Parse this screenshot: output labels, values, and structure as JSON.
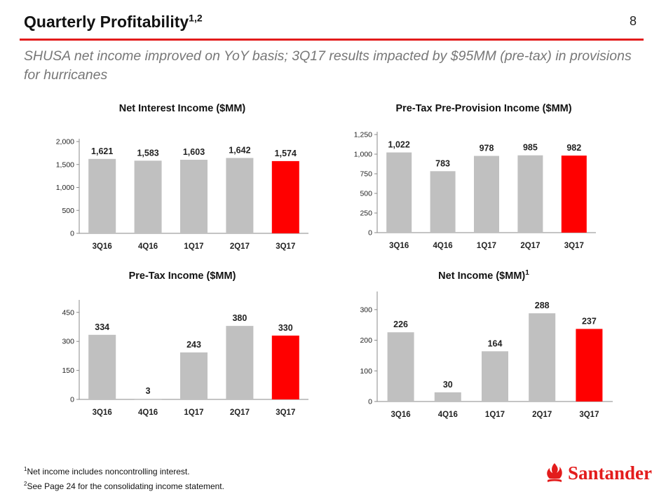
{
  "header": {
    "title": "Quarterly Profitability",
    "title_sup": "1,2",
    "page_number": "8",
    "subtitle": "SHUSA net income improved on YoY basis; 3Q17 results impacted by $95MM (pre-tax) in provisions for hurricanes"
  },
  "colors": {
    "bar_default": "#c0c0c0",
    "bar_highlight": "#ff0000",
    "brand": "#e31c1c"
  },
  "chart_data": [
    {
      "type": "bar",
      "title": "Net Interest Income ($MM)",
      "title_sup": "",
      "categories": [
        "3Q16",
        "4Q16",
        "1Q17",
        "2Q17",
        "3Q17"
      ],
      "values": [
        1621,
        1583,
        1603,
        1642,
        1574
      ],
      "value_labels": [
        "1,621",
        "1,583",
        "1,603",
        "1,642",
        "1,574"
      ],
      "yticks": [
        0,
        500,
        1000,
        1500,
        2000
      ],
      "ytick_labels": [
        "0",
        "500",
        "1,000",
        "1,500",
        "2,000"
      ],
      "ylim": [
        0,
        2000
      ],
      "highlight_index": 4
    },
    {
      "type": "bar",
      "title": "Pre-Tax Pre-Provision Income ($MM)",
      "title_sup": "",
      "categories": [
        "3Q16",
        "4Q16",
        "1Q17",
        "2Q17",
        "3Q17"
      ],
      "values": [
        1022,
        783,
        978,
        985,
        982
      ],
      "value_labels": [
        "1,022",
        "783",
        "978",
        "985",
        "982"
      ],
      "yticks": [
        0,
        250,
        500,
        750,
        1000,
        1250
      ],
      "ytick_labels": [
        "0",
        "250",
        "500",
        "750",
        "1,000",
        "1,250"
      ],
      "ylim": [
        0,
        1250
      ],
      "highlight_index": 4
    },
    {
      "type": "bar",
      "title": "Pre-Tax Income ($MM)",
      "title_sup": "",
      "categories": [
        "3Q16",
        "4Q16",
        "1Q17",
        "2Q17",
        "3Q17"
      ],
      "values": [
        334,
        3,
        243,
        380,
        330
      ],
      "value_labels": [
        "334",
        "3",
        "243",
        "380",
        "330"
      ],
      "yticks": [
        0,
        150,
        300,
        450
      ],
      "ytick_labels": [
        "0",
        "150",
        "300",
        "450"
      ],
      "ylim": [
        0,
        500
      ],
      "highlight_index": 4
    },
    {
      "type": "bar",
      "title": "Net Income ($MM)",
      "title_sup": "1",
      "categories": [
        "3Q16",
        "4Q16",
        "1Q17",
        "2Q17",
        "3Q17"
      ],
      "values": [
        226,
        30,
        164,
        288,
        237
      ],
      "value_labels": [
        "226",
        "30",
        "164",
        "288",
        "237"
      ],
      "yticks": [
        0,
        100,
        200,
        300
      ],
      "ytick_labels": [
        "0",
        "100",
        "200",
        "300"
      ],
      "ylim": [
        0,
        350
      ],
      "highlight_index": 4
    }
  ],
  "footnotes": [
    {
      "sup": "1",
      "text": "Net income includes noncontrolling interest."
    },
    {
      "sup": "2",
      "text": "See Page 24 for the consolidating income statement."
    }
  ],
  "logo": {
    "name": "santander-flame-icon",
    "text": "Santander"
  }
}
